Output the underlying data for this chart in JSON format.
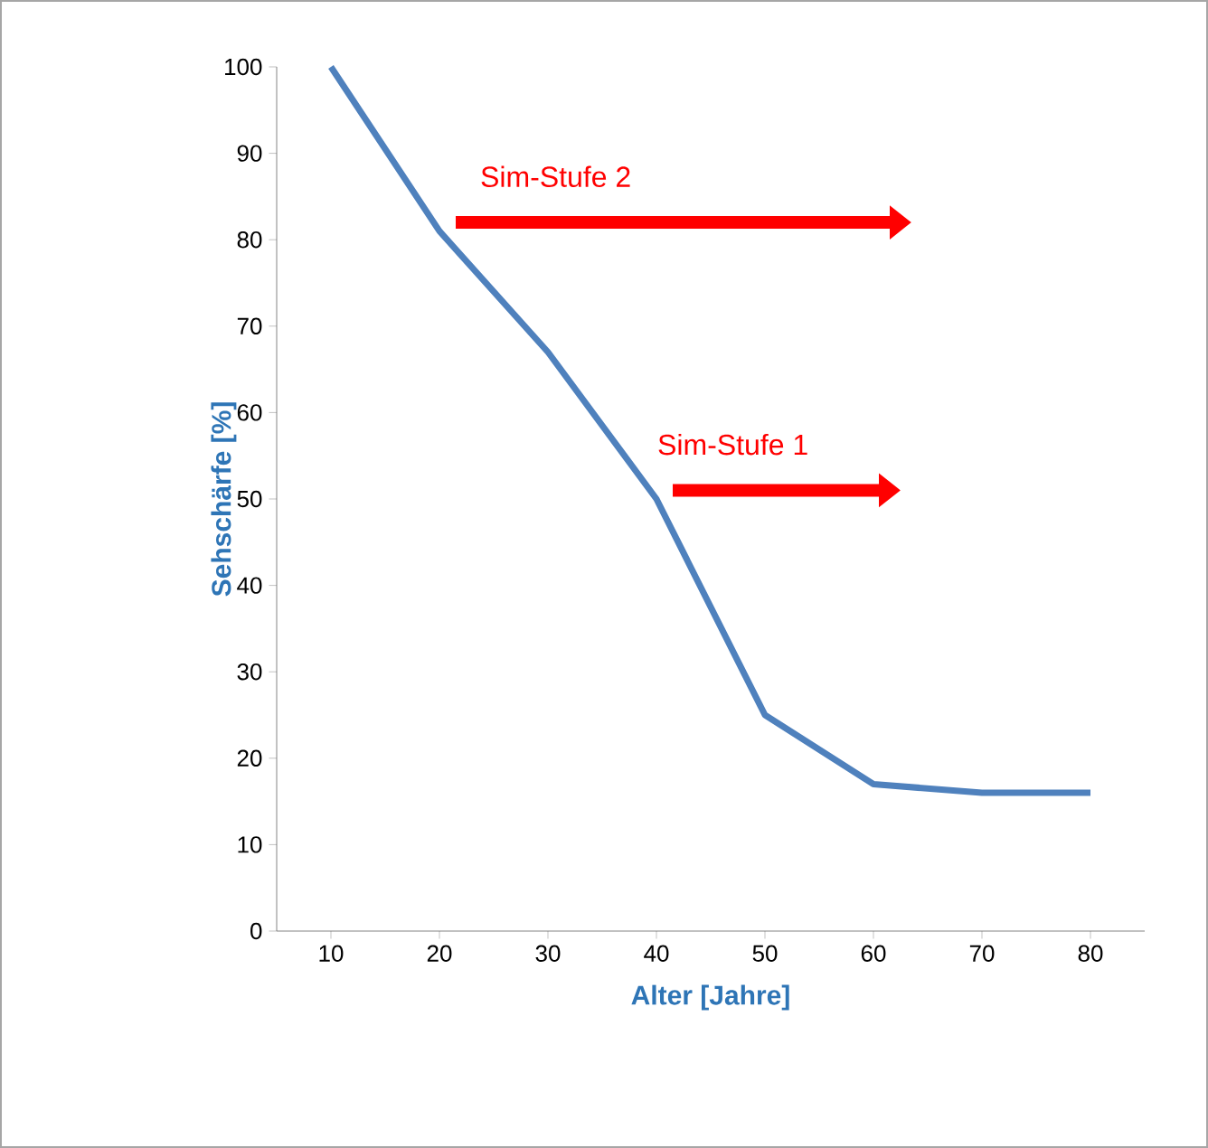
{
  "chart_data": {
    "type": "line",
    "xlabel": "Alter [Jahre]",
    "ylabel": "Sehschärfe [%]",
    "categories": [
      "10",
      "20",
      "30",
      "40",
      "50",
      "60",
      "70",
      "80"
    ],
    "series": [
      {
        "color": "#4f81bd",
        "values": [
          100,
          81,
          67,
          50,
          25,
          17,
          16,
          16
        ]
      }
    ],
    "ylim": [
      0,
      100
    ],
    "yticks": [
      0,
      10,
      20,
      30,
      40,
      50,
      60,
      70,
      80,
      90,
      100
    ],
    "grid": false,
    "marker": "none",
    "line_style": "solid",
    "annotations": [
      {
        "text": "Sim-Stufe 2",
        "x": "20",
        "y": 82
      },
      {
        "text": "Sim-Stufe 1",
        "x": "40",
        "y": 51
      }
    ]
  }
}
